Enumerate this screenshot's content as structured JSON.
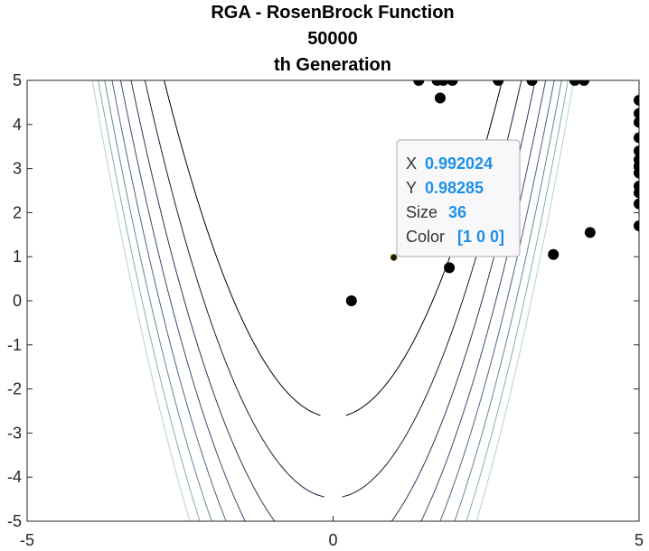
{
  "chart_data": {
    "type": "scatter",
    "title_lines": [
      "RGA - RosenBrock Function",
      "50000",
      "th Generation"
    ],
    "xlim": [
      -5,
      5
    ],
    "ylim": [
      -5,
      5
    ],
    "xticks": [
      -5,
      0,
      5
    ],
    "yticks": [
      5,
      4,
      3,
      2,
      1,
      0,
      -1,
      -2,
      -3,
      -4,
      -5
    ],
    "grid": false,
    "background": "contour",
    "contour_colors": [
      "#000000",
      "#1c1c3a",
      "#2e3558",
      "#3d4a6e",
      "#4e6482",
      "#648a96",
      "#86aeae",
      "#b3d2c8"
    ],
    "marker_color": "#000000",
    "points": [
      {
        "x": 0.3,
        "y": 0.0
      },
      {
        "x": 1.9,
        "y": 0.75
      },
      {
        "x": 3.6,
        "y": 1.05
      },
      {
        "x": 4.2,
        "y": 1.55
      },
      {
        "x": 1.4,
        "y": 5.0
      },
      {
        "x": 1.7,
        "y": 5.0
      },
      {
        "x": 1.8,
        "y": 5.0
      },
      {
        "x": 1.95,
        "y": 5.0
      },
      {
        "x": 2.7,
        "y": 5.0
      },
      {
        "x": 3.25,
        "y": 5.0
      },
      {
        "x": 3.95,
        "y": 5.0
      },
      {
        "x": 4.1,
        "y": 5.0
      },
      {
        "x": 1.75,
        "y": 4.6
      },
      {
        "x": 5.0,
        "y": 4.55
      },
      {
        "x": 5.0,
        "y": 4.25
      },
      {
        "x": 5.0,
        "y": 4.05
      },
      {
        "x": 5.0,
        "y": 3.7
      },
      {
        "x": 5.0,
        "y": 3.4
      },
      {
        "x": 5.0,
        "y": 3.2
      },
      {
        "x": 5.0,
        "y": 3.05
      },
      {
        "x": 5.0,
        "y": 2.9
      },
      {
        "x": 5.0,
        "y": 2.6
      },
      {
        "x": 5.0,
        "y": 2.45
      },
      {
        "x": 5.0,
        "y": 2.2
      },
      {
        "x": 5.0,
        "y": 1.7
      }
    ],
    "highlighted_point": {
      "x": 0.992024,
      "y": 0.98285,
      "color": "#1a1a00"
    },
    "datatip": {
      "rows": [
        {
          "label": "X",
          "value": "0.992024"
        },
        {
          "label": "Y",
          "value": "0.98285"
        },
        {
          "label": "Size",
          "value": "36"
        },
        {
          "label": "Color",
          "value": "[1 0 0]"
        }
      ],
      "value_color": "#1e90e6"
    }
  }
}
